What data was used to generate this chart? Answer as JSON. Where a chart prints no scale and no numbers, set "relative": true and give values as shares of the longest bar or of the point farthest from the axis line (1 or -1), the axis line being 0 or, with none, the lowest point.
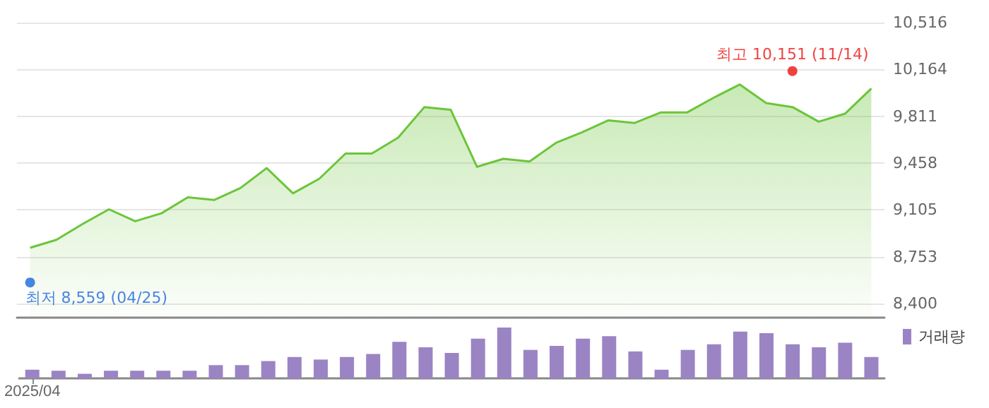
{
  "chart_data": [
    {
      "type": "area",
      "categories": [
        null,
        null,
        null,
        null,
        null,
        null,
        null,
        null,
        null,
        null,
        null,
        null,
        null,
        null,
        null,
        null,
        null,
        null,
        null,
        null,
        null,
        null,
        null,
        null,
        null,
        null,
        null,
        null,
        null,
        null,
        null,
        null,
        null
      ],
      "series": [
        {
          "type": "area",
          "color": "#6cc53a",
          "values": [
            8820,
            8880,
            9000,
            9110,
            9020,
            9080,
            9200,
            9180,
            9270,
            9420,
            9230,
            9340,
            9530,
            9530,
            9650,
            9880,
            9860,
            9430,
            9490,
            9470,
            9610,
            9690,
            9780,
            9760,
            9840,
            9840,
            9950,
            10050,
            9910,
            9880,
            9770,
            9830,
            10020
          ]
        },
        {
          "type": "scatter",
          "color": "#1a66dd",
          "marker": "circle",
          "values": [
            8559,
            null,
            null,
            null,
            null,
            null,
            null,
            null,
            null,
            null,
            null,
            null,
            null,
            null,
            null,
            null,
            null,
            null,
            null,
            null,
            null,
            null,
            null,
            null,
            null,
            null,
            null,
            null,
            null,
            null,
            null,
            null,
            null
          ],
          "value_labels": [
            "최저 8,559 (04/25)",
            null,
            null,
            null,
            null,
            null,
            null,
            null,
            null,
            null,
            null,
            null,
            null,
            null,
            null,
            null,
            null,
            null,
            null,
            null,
            null,
            null,
            null,
            null,
            null,
            null,
            null,
            null,
            null,
            null,
            null,
            null,
            null
          ]
        },
        {
          "type": "scatter",
          "color": "#ee1111",
          "marker": "circle",
          "values": [
            null,
            null,
            null,
            null,
            null,
            null,
            null,
            null,
            null,
            null,
            null,
            null,
            null,
            null,
            null,
            null,
            null,
            null,
            null,
            null,
            null,
            null,
            null,
            null,
            null,
            null,
            null,
            null,
            null,
            10151,
            null,
            null,
            null
          ],
          "value_labels": [
            null,
            null,
            null,
            null,
            null,
            null,
            null,
            null,
            null,
            null,
            null,
            null,
            null,
            null,
            null,
            null,
            null,
            null,
            null,
            null,
            null,
            null,
            null,
            null,
            null,
            null,
            null,
            null,
            null,
            "최고 10,151 (11/14)",
            null,
            null,
            null
          ]
        }
      ],
      "ylim": [
        8294,
        10516
      ],
      "yticks": [
        {
          "value": 8400,
          "label": "8,400"
        },
        {
          "value": 8753,
          "label": "8,753"
        },
        {
          "value": 9105,
          "label": "9,105"
        },
        {
          "value": 9458,
          "label": "9,458"
        },
        {
          "value": 9811,
          "label": "9,811"
        },
        {
          "value": 10164,
          "label": "10,164"
        },
        {
          "value": 10516,
          "label": "10,516"
        }
      ],
      "grid": "y",
      "tick_labels": "y"
    },
    {
      "type": "bar",
      "relative": true,
      "categories": [
        "2025/04",
        null,
        null,
        null,
        null,
        null,
        null,
        null,
        null,
        null,
        null,
        null,
        null,
        null,
        null,
        null,
        null,
        null,
        null,
        null,
        null,
        null,
        null,
        null,
        null,
        null,
        null,
        null,
        null,
        null,
        null,
        null,
        null
      ],
      "series": [
        {
          "name": "거래량",
          "color": "#9b84c4",
          "values": [
            0.17,
            0.15,
            0.09,
            0.15,
            0.15,
            0.15,
            0.15,
            0.26,
            0.26,
            0.34,
            0.42,
            0.37,
            0.42,
            0.48,
            0.72,
            0.61,
            0.5,
            0.78,
            1,
            0.56,
            0.64,
            0.78,
            0.83,
            0.53,
            0.17,
            0.56,
            0.67,
            0.92,
            0.89,
            0.67,
            0.61,
            0.7,
            0.42
          ]
        }
      ],
      "legend": "top right",
      "tick_labels": "x"
    }
  ]
}
